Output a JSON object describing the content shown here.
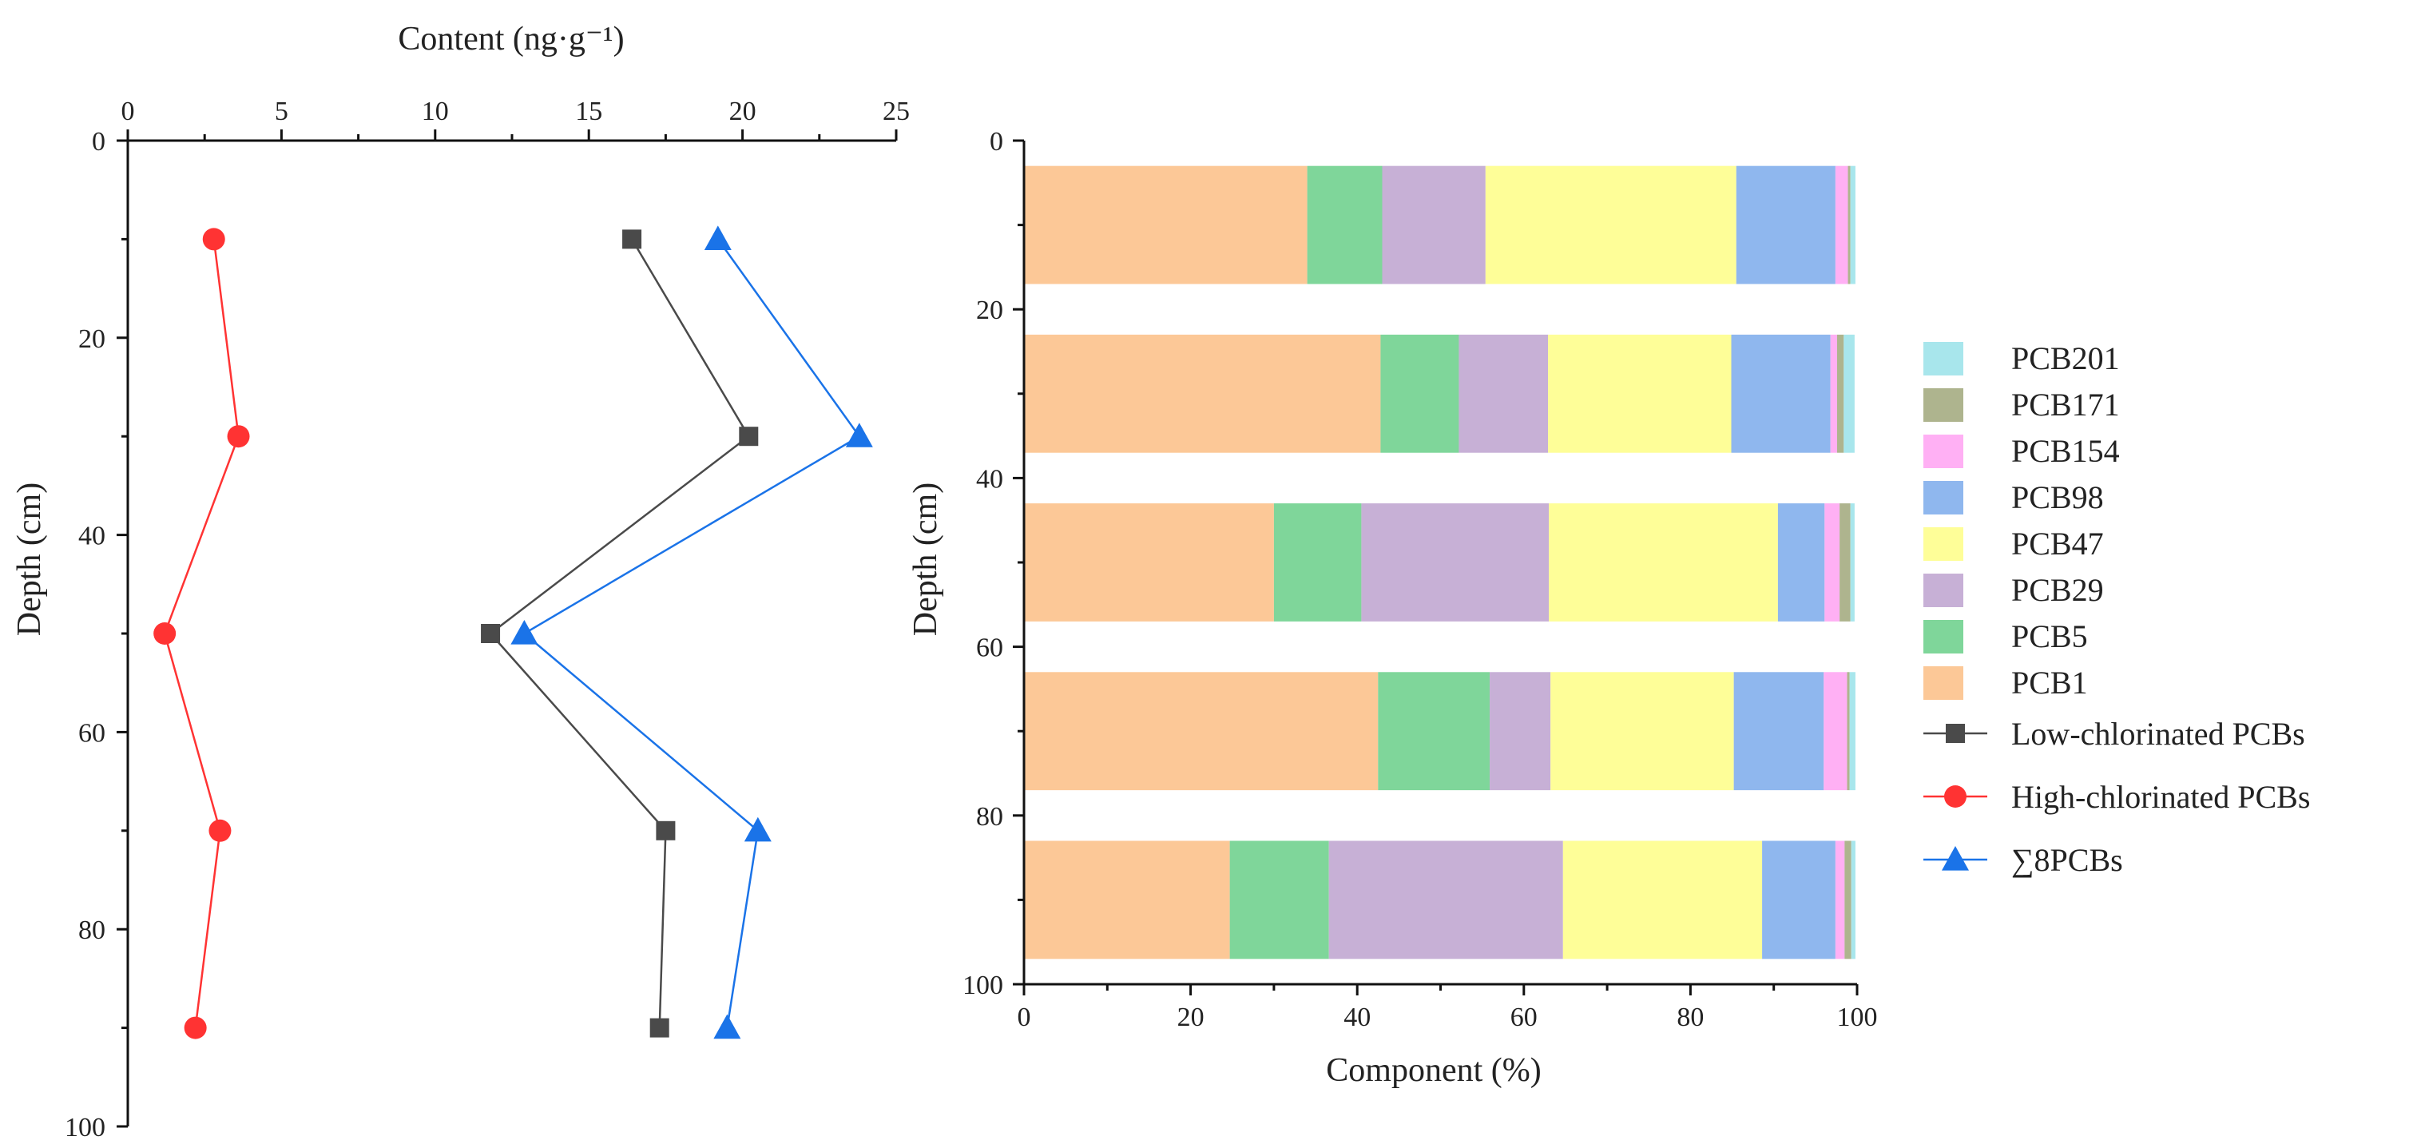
{
  "chart_data": [
    {
      "type": "line",
      "xlabel": "Content (ng·g⁻¹)",
      "ylabel": "Depth (cm)",
      "x_axis_position": "top",
      "y_axis_inverted": true,
      "xlim": [
        0,
        25
      ],
      "ylim": [
        0,
        100
      ],
      "xticks": [
        "0",
        "5",
        "10",
        "15",
        "20",
        "25"
      ],
      "yticks": [
        "0",
        "20",
        "40",
        "60",
        "80",
        "100"
      ],
      "depths": [
        10,
        30,
        50,
        70,
        90
      ],
      "series": [
        {
          "name": "Low-chlorinated PCBs",
          "marker": "square",
          "color": "#4a4a4a",
          "values": [
            16.4,
            20.2,
            11.8,
            17.5,
            17.3
          ]
        },
        {
          "name": "High-chlorinated PCBs",
          "marker": "circle",
          "color": "#ff3333",
          "values": [
            2.8,
            3.6,
            1.2,
            3.0,
            2.2
          ]
        },
        {
          "name": "∑8PCBs",
          "marker": "triangle",
          "color": "#1a73e8",
          "values": [
            19.2,
            23.8,
            12.9,
            20.5,
            19.5
          ]
        }
      ]
    },
    {
      "type": "bar",
      "orientation": "horizontal",
      "stacked": true,
      "xlabel": "Component (%)",
      "ylabel": "Depth (cm)",
      "xlim": [
        0,
        100
      ],
      "ylim": [
        0,
        100
      ],
      "y_axis_inverted": true,
      "xticks": [
        "0",
        "20",
        "40",
        "60",
        "80",
        "100"
      ],
      "yticks": [
        "0",
        "20",
        "40",
        "60",
        "80",
        "100"
      ],
      "bar_ranges": [
        [
          3,
          17
        ],
        [
          23,
          37
        ],
        [
          43,
          57
        ],
        [
          63,
          77
        ],
        [
          83,
          97
        ]
      ],
      "series": [
        {
          "name": "PCB1",
          "color": "#fcc897",
          "values": [
            34.0,
            42.8,
            30.0,
            42.5,
            24.7
          ]
        },
        {
          "name": "PCB5",
          "color": "#7fd69a",
          "values": [
            9.0,
            9.4,
            10.5,
            13.4,
            11.9
          ]
        },
        {
          "name": "PCB29",
          "color": "#c7b0d6",
          "values": [
            12.4,
            10.7,
            22.5,
            7.3,
            28.1
          ]
        },
        {
          "name": "PCB47",
          "color": "#fefe98",
          "values": [
            30.1,
            22.0,
            27.5,
            22.0,
            23.9
          ]
        },
        {
          "name": "PCB98",
          "color": "#8fb7ee",
          "values": [
            11.9,
            11.9,
            5.6,
            10.8,
            8.8
          ]
        },
        {
          "name": "PCB154",
          "color": "#ffb0f4",
          "values": [
            1.5,
            0.8,
            1.8,
            2.8,
            1.1
          ]
        },
        {
          "name": "PCB171",
          "color": "#aeb48e",
          "values": [
            0.3,
            0.8,
            1.3,
            0.3,
            0.8
          ]
        },
        {
          "name": "PCB201",
          "color": "#a8e6ec",
          "values": [
            0.6,
            1.3,
            0.5,
            0.7,
            0.5
          ]
        }
      ]
    }
  ],
  "legend": {
    "pcb_items": [
      "PCB201",
      "PCB171",
      "PCB154",
      "PCB98",
      "PCB47",
      "PCB29",
      "PCB5",
      "PCB1"
    ],
    "line_items": [
      "Low-chlorinated PCBs",
      "High-chlorinated PCBs",
      "∑8PCBs"
    ]
  }
}
